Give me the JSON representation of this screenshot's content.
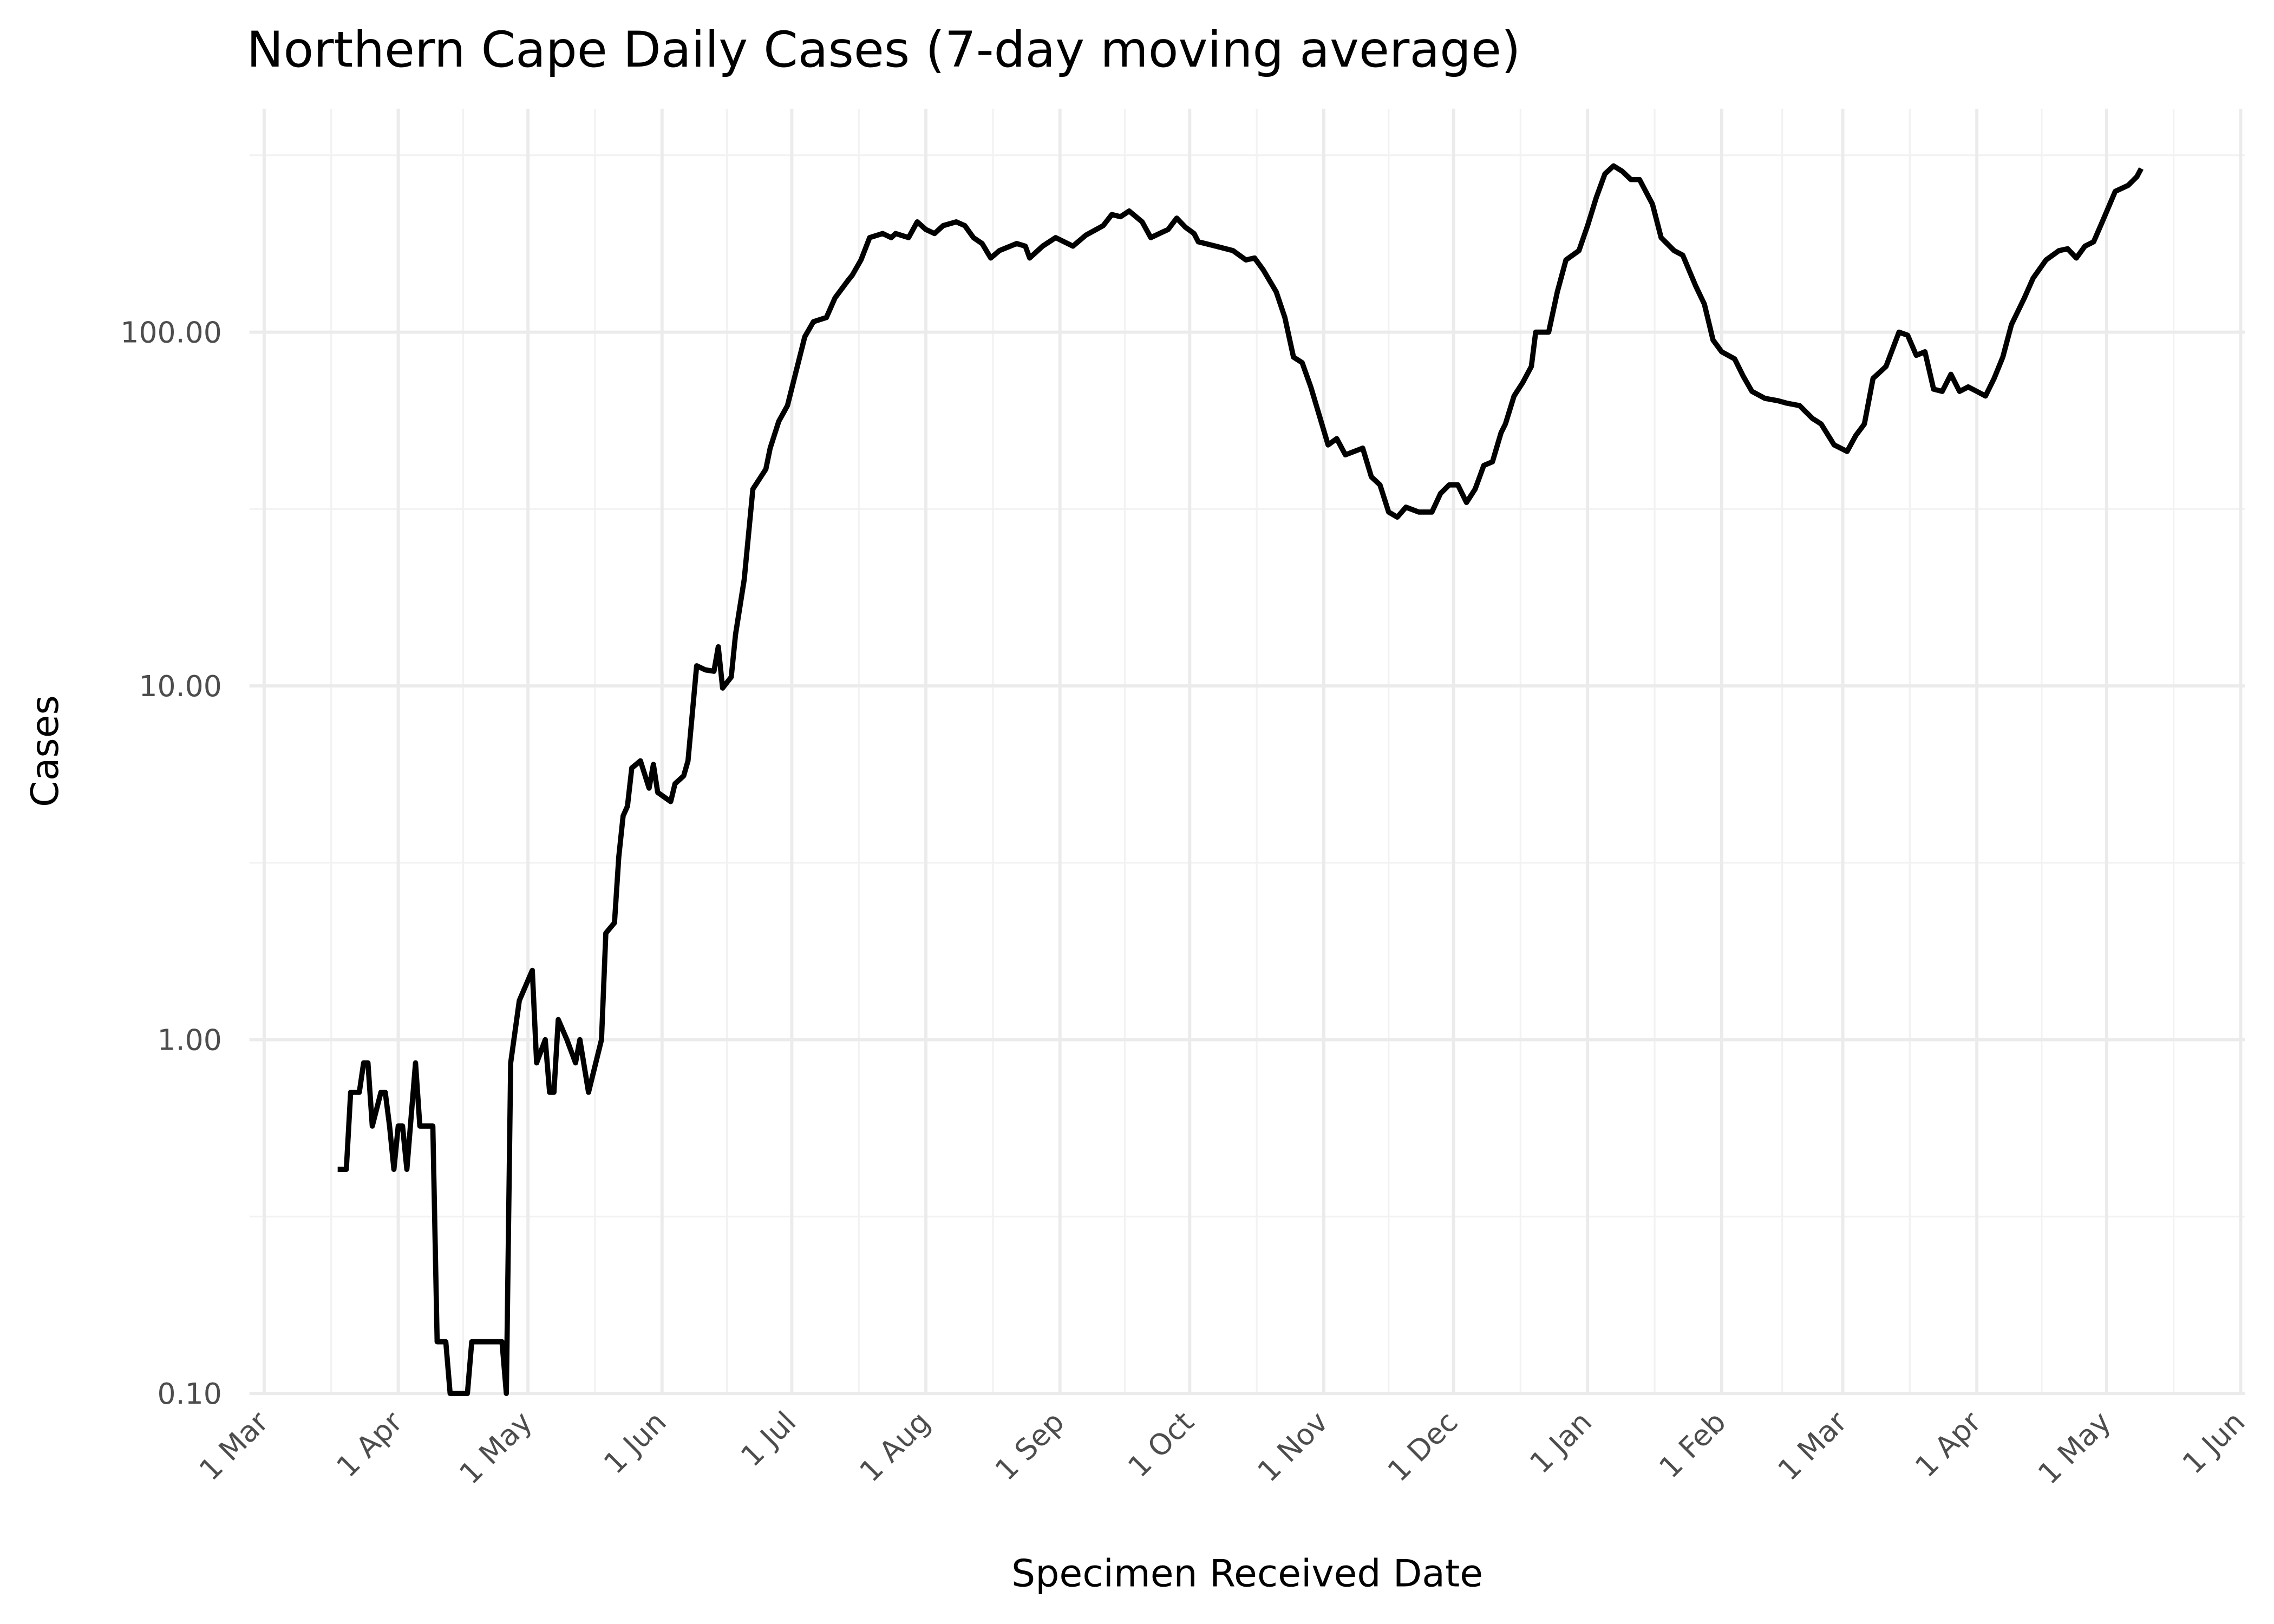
{
  "chart_data": {
    "type": "line",
    "title": "Northern Cape Daily Cases (7-day moving average)",
    "x_label": "Specimen Received Date",
    "y_label": "Cases",
    "y_scale": "log",
    "grid": true,
    "color": "#000000",
    "xlim": [
      -3.4,
      458
    ],
    "ylim": [
      0.1,
      428
    ],
    "xticks": [
      {
        "value": 0,
        "label": "1 Mar"
      },
      {
        "value": 31,
        "label": "1 Apr"
      },
      {
        "value": 61,
        "label": "1 May"
      },
      {
        "value": 92,
        "label": "1 Jun"
      },
      {
        "value": 122,
        "label": "1 Jul"
      },
      {
        "value": 153,
        "label": "1 Aug"
      },
      {
        "value": 184,
        "label": "1 Sep"
      },
      {
        "value": 214,
        "label": "1 Oct"
      },
      {
        "value": 245,
        "label": "1 Nov"
      },
      {
        "value": 275,
        "label": "1 Dec"
      },
      {
        "value": 306,
        "label": "1 Jan"
      },
      {
        "value": 337,
        "label": "1 Feb"
      },
      {
        "value": 365,
        "label": "1 Mar"
      },
      {
        "value": 396,
        "label": "1 Apr"
      },
      {
        "value": 426,
        "label": "1 May"
      },
      {
        "value": 457,
        "label": "1 Jun"
      }
    ],
    "yticks": [
      {
        "value": 0.1,
        "label": "0.10"
      },
      {
        "value": 1,
        "label": "1.00"
      },
      {
        "value": 10,
        "label": "10.00"
      },
      {
        "value": 100,
        "label": "100.00"
      }
    ],
    "x": [
      17,
      19,
      20,
      22,
      23,
      24,
      25,
      27,
      28,
      29,
      30,
      31,
      32,
      33,
      35,
      36,
      39,
      40,
      42,
      43,
      47,
      48,
      55,
      56,
      57,
      59,
      62,
      63,
      65,
      66,
      67,
      68,
      70,
      72,
      73,
      75,
      78,
      79,
      81,
      82,
      83,
      84,
      85,
      87,
      89,
      90,
      91,
      94,
      95,
      97,
      98,
      100,
      102,
      104,
      105,
      106,
      108,
      109,
      111,
      113,
      116,
      117,
      119,
      121,
      125,
      127,
      130,
      132,
      135,
      136,
      138,
      140,
      143,
      145,
      146,
      149,
      151,
      153,
      155,
      157,
      160,
      162,
      164,
      166,
      168,
      170,
      174,
      176,
      177,
      180,
      183,
      187,
      190,
      194,
      196,
      198,
      200,
      203,
      205,
      207,
      209,
      211,
      213,
      215,
      216,
      220,
      224,
      227,
      229,
      231,
      234,
      236,
      238,
      240,
      242,
      244,
      246,
      248,
      250,
      254,
      256,
      258,
      260,
      262,
      264,
      267,
      270,
      272,
      274,
      276,
      278,
      280,
      282,
      284,
      286,
      287,
      289,
      291,
      293,
      294,
      297,
      299,
      301,
      304,
      306,
      308,
      310,
      312,
      314,
      316,
      318,
      321,
      323,
      326,
      328,
      331,
      333,
      335,
      337,
      340,
      342,
      344,
      347,
      350,
      352,
      355,
      358,
      360,
      363,
      366,
      368,
      370,
      372,
      375,
      378,
      380,
      382,
      384,
      386,
      388,
      390,
      392,
      394,
      396,
      398,
      400,
      402,
      404,
      407,
      409,
      412,
      415,
      417,
      419,
      421,
      423,
      425,
      428,
      431,
      433,
      434
    ],
    "values": [
      0.43,
      0.43,
      0.71,
      0.71,
      0.86,
      0.86,
      0.57,
      0.71,
      0.71,
      0.57,
      0.43,
      0.57,
      0.57,
      0.43,
      0.86,
      0.57,
      0.57,
      0.14,
      0.14,
      0.1,
      0.1,
      0.14,
      0.14,
      0.1,
      0.86,
      1.29,
      1.57,
      0.86,
      1.0,
      0.71,
      0.71,
      1.14,
      1.0,
      0.86,
      1.0,
      0.71,
      1.0,
      2.0,
      2.14,
      3.29,
      4.29,
      4.57,
      5.86,
      6.14,
      5.14,
      6.0,
      5.0,
      4.71,
      5.29,
      5.57,
      6.14,
      11.4,
      11.1,
      11.0,
      12.9,
      9.86,
      10.6,
      14.0,
      20,
      36,
      41,
      47,
      56,
      62,
      97,
      107,
      110,
      125,
      140,
      145,
      160,
      185,
      190,
      185,
      190,
      185,
      205,
      195,
      190,
      200,
      205,
      200,
      185,
      178,
      162,
      170,
      178,
      175,
      162,
      175,
      185,
      175,
      188,
      200,
      215,
      212,
      220,
      205,
      185,
      190,
      195,
      210,
      198,
      190,
      180,
      175,
      170,
      160,
      162,
      150,
      130,
      110,
      85,
      82,
      70,
      58,
      48,
      50,
      45,
      47,
      39,
      37,
      31,
      30,
      32,
      31,
      31,
      35,
      37,
      37,
      33,
      36,
      42,
      43,
      52,
      55,
      66,
      72,
      80,
      100,
      100,
      130,
      160,
      170,
      200,
      240,
      280,
      295,
      285,
      270,
      270,
      230,
      185,
      170,
      165,
      135,
      120,
      95,
      88,
      84,
      75,
      68,
      65,
      64,
      63,
      62,
      57,
      55,
      48,
      46,
      51,
      55,
      74,
      80,
      100,
      98,
      86,
      88,
      69,
      68,
      76,
      68,
      70,
      68,
      66,
      74,
      85,
      105,
      125,
      142,
      160,
      170,
      172,
      162,
      175,
      180,
      205,
      250,
      260,
      275,
      290
    ]
  }
}
